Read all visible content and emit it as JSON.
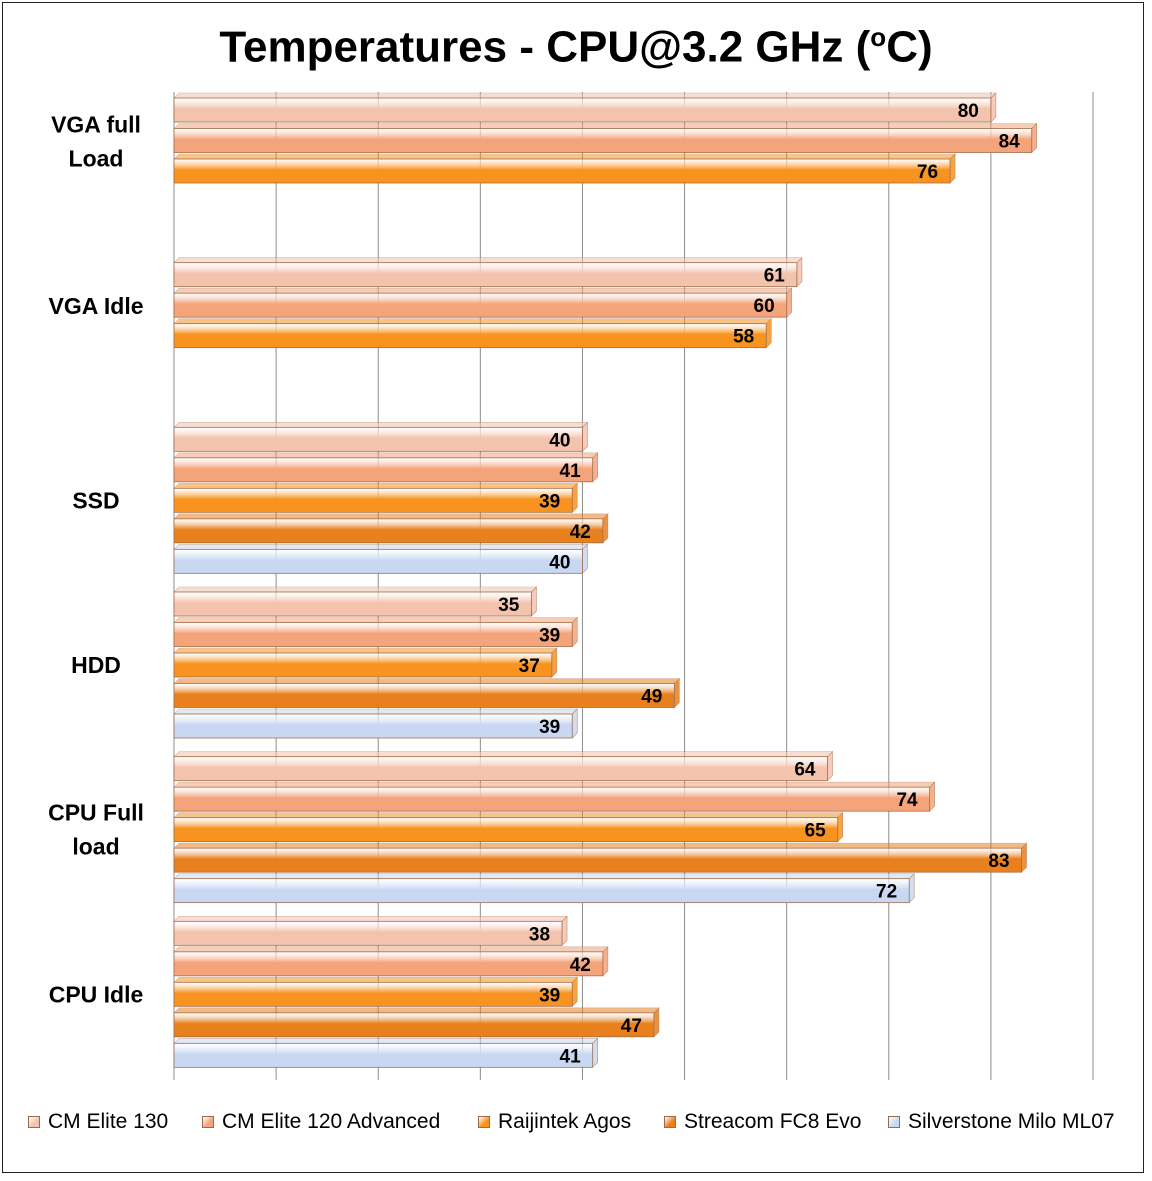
{
  "chart_data": {
    "type": "bar",
    "orientation": "horizontal",
    "title": "Temperatures - CPU@3.2 GHz (",
    "title_superscript": "o",
    "title_suffix": "C)",
    "xlim": [
      0,
      90
    ],
    "grid": true,
    "legend_position": "bottom",
    "categories": [
      "VGA full Load",
      "VGA Idle",
      "SSD",
      "HDD",
      "CPU Full load",
      "CPU Idle"
    ],
    "category_lines": [
      [
        "VGA full",
        "Load"
      ],
      [
        "VGA Idle"
      ],
      [
        "SSD"
      ],
      [
        "HDD"
      ],
      [
        "CPU Full",
        "load"
      ],
      [
        "CPU Idle"
      ]
    ],
    "series": [
      {
        "name": "CM Elite 130",
        "color": "#f4c3ae",
        "values": [
          80,
          61,
          40,
          35,
          64,
          38
        ]
      },
      {
        "name": "CM Elite 120 Advanced",
        "color": "#f4a47a",
        "values": [
          84,
          60,
          41,
          39,
          74,
          42
        ]
      },
      {
        "name": "Raijintek Agos",
        "color": "#f7931e",
        "values": [
          76,
          58,
          39,
          37,
          65,
          39
        ]
      },
      {
        "name": "Streacom FC8 Evo",
        "color": "#e8801e",
        "values": [
          null,
          null,
          42,
          49,
          83,
          47
        ]
      },
      {
        "name": "Silverstone Milo ML07",
        "color": "#c9d8f2",
        "values": [
          null,
          null,
          40,
          39,
          72,
          41
        ]
      }
    ]
  }
}
